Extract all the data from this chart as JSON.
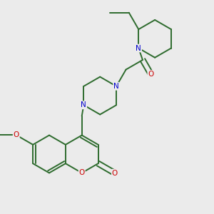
{
  "bg_color": "#ebebeb",
  "bond_color": "#2d6b2d",
  "atom_O": "#cc0000",
  "atom_N": "#0000cc",
  "lw": 1.4,
  "fs": 7.5,
  "xlim": [
    0,
    10
  ],
  "ylim": [
    0,
    10
  ]
}
